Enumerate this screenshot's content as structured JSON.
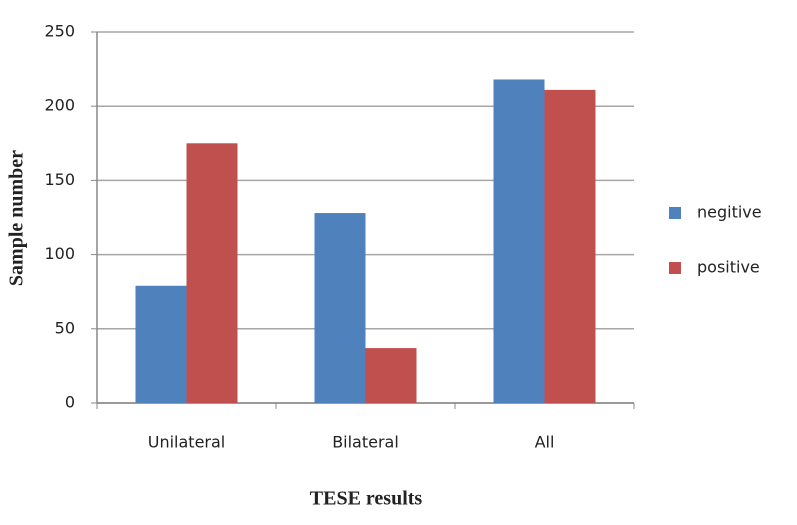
{
  "chart_data": {
    "type": "bar",
    "x_label": "TESE results",
    "y_label": "Sample number",
    "categories": [
      "Unilateral",
      "Bilateral",
      "All"
    ],
    "series": [
      {
        "name": "negitive",
        "color": "#4f81bd",
        "values": [
          79,
          128,
          218
        ]
      },
      {
        "name": "positive",
        "color": "#c0504d",
        "values": [
          175,
          37,
          211
        ]
      }
    ],
    "ylim": [
      0,
      250
    ],
    "yticks": [
      0,
      50,
      100,
      150,
      200,
      250
    ],
    "grid": true,
    "legend": "right"
  }
}
